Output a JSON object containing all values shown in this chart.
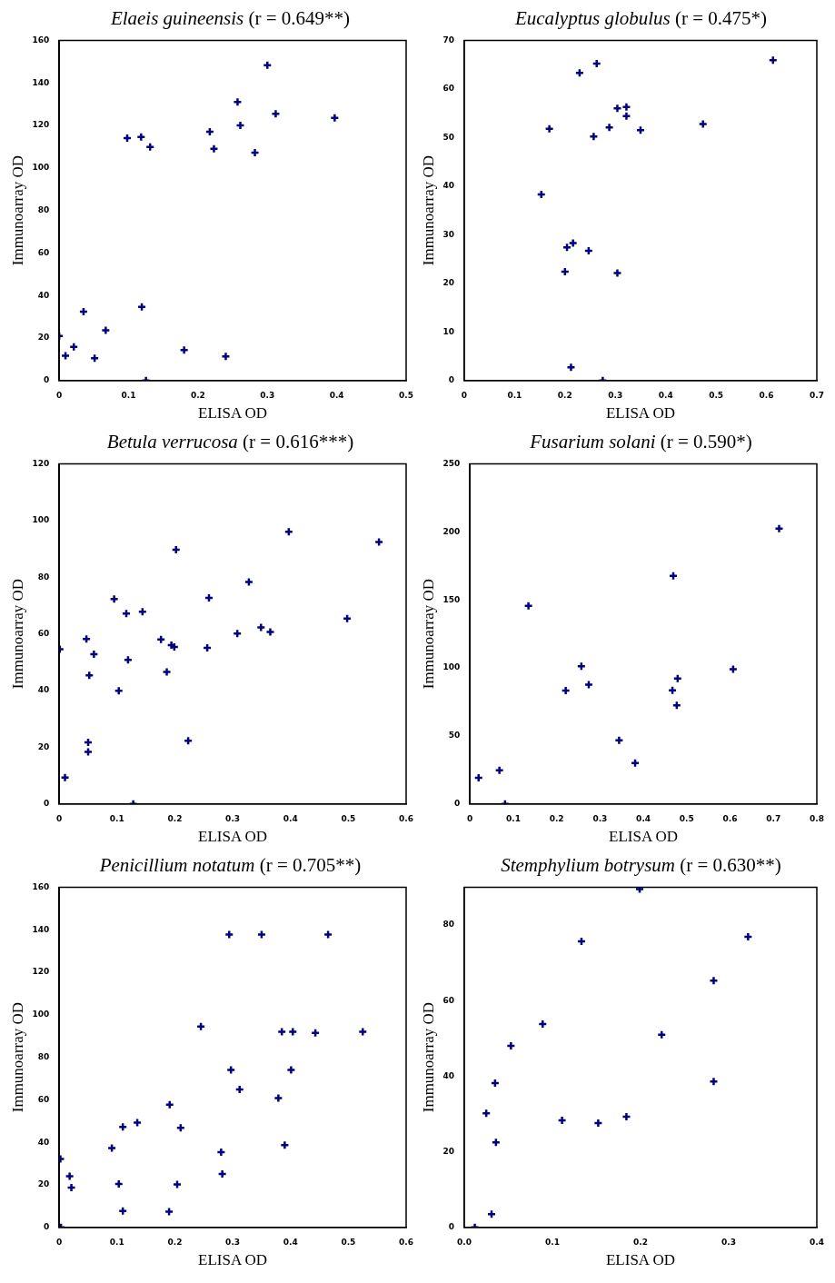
{
  "chart_data": [
    {
      "type": "scatter",
      "title": "Elaeis guineensis (r = 0.649**)",
      "xlabel": "ELISA OD",
      "ylabel": "Immunoarray OD",
      "marker": "cross",
      "xlim": [
        0,
        0.5
      ],
      "xticks": [
        0,
        0.1,
        0.2,
        0.3,
        0.4,
        0.5
      ],
      "ylim": [
        0,
        160
      ],
      "yticks": [
        0,
        20,
        40,
        60,
        80,
        100,
        120,
        140,
        160
      ],
      "series": [
        {
          "color": "#000080",
          "x": [
            0,
            0.009,
            0.021,
            0.035,
            0.051,
            0.067,
            0.098,
            0.118,
            0.119,
            0.125,
            0.131,
            0.18,
            0.217,
            0.223,
            0.24,
            0.257,
            0.261,
            0.282,
            0.3,
            0.312,
            0.397
          ],
          "values": [
            21,
            11.7,
            15.8,
            32.4,
            10.5,
            23.6,
            114,
            114.6,
            34.6,
            0,
            109.8,
            14.3,
            117,
            109,
            11.3,
            131,
            120,
            107.2,
            148.3,
            125.5,
            123.5
          ]
        }
      ]
    },
    {
      "type": "scatter",
      "title": "Eucalyptus globulus (r = 0.475*)",
      "xlabel": "ELISA OD",
      "ylabel": "Immunoarray OD",
      "marker": "cross",
      "xlim": [
        0,
        0.7
      ],
      "xticks": [
        0,
        0.1,
        0.2,
        0.3,
        0.4,
        0.5,
        0.6,
        0.7
      ],
      "ylim": [
        0,
        70
      ],
      "yticks": [
        0,
        10,
        20,
        30,
        40,
        50,
        60,
        70
      ],
      "series": [
        {
          "color": "#000080",
          "x": [
            0.153,
            0.169,
            0.2,
            0.204,
            0.216,
            0.212,
            0.229,
            0.247,
            0.257,
            0.263,
            0.275,
            0.288,
            0.304,
            0.304,
            0.322,
            0.322,
            0.35,
            0.474,
            0.613
          ],
          "values": [
            38.3,
            51.8,
            22.4,
            27.4,
            28.3,
            2.7,
            63.3,
            26.7,
            50.2,
            65.2,
            0,
            52.1,
            22.1,
            56,
            56.3,
            54.4,
            51.5,
            52.8,
            65.9
          ]
        }
      ]
    },
    {
      "type": "scatter",
      "title": "Betula verrucosa (r = 0.616***)",
      "xlabel": "ELISA OD",
      "ylabel": "Immunoarray OD",
      "marker": "cross",
      "xlim": [
        0,
        0.6
      ],
      "xticks": [
        0,
        0.1,
        0.2,
        0.3,
        0.4,
        0.5,
        0.6
      ],
      "ylim": [
        0,
        120
      ],
      "yticks": [
        0,
        20,
        40,
        60,
        80,
        100,
        120
      ],
      "series": [
        {
          "color": "#000080",
          "x": [
            0.001,
            0.01,
            0.047,
            0.05,
            0.05,
            0.052,
            0.06,
            0.095,
            0.103,
            0.116,
            0.119,
            0.128,
            0.144,
            0.176,
            0.186,
            0.194,
            0.199,
            0.202,
            0.223,
            0.256,
            0.259,
            0.308,
            0.328,
            0.349,
            0.365,
            0.397,
            0.498,
            0.553
          ],
          "values": [
            54.6,
            9.3,
            58.2,
            21.7,
            18.4,
            45.4,
            52.8,
            72.3,
            39.9,
            67.2,
            50.8,
            0,
            67.8,
            58,
            46.6,
            56,
            55.4,
            89.7,
            22.3,
            55.1,
            72.7,
            60.1,
            78.3,
            62.3,
            60.7,
            96,
            65.4,
            92.4
          ]
        }
      ]
    },
    {
      "type": "scatter",
      "title": "Fusarium solani (r = 0.590*)",
      "xlabel": "ELISA OD",
      "ylabel": "Immunoarray OD",
      "marker": "cross",
      "xlim": [
        0,
        0.8
      ],
      "xticks": [
        0,
        0.1,
        0.2,
        0.3,
        0.4,
        0.5,
        0.6,
        0.7,
        0.8
      ],
      "ylim": [
        0,
        250
      ],
      "yticks": [
        0,
        50,
        100,
        150,
        200,
        250
      ],
      "series": [
        {
          "color": "#000080",
          "x": [
            0.02,
            0.068,
            0.081,
            0.135,
            0.221,
            0.257,
            0.274,
            0.344,
            0.381,
            0.467,
            0.469,
            0.477,
            0.479,
            0.607,
            0.713
          ],
          "values": [
            19.2,
            24.7,
            0,
            145.6,
            83.3,
            101.2,
            87.6,
            46.8,
            30,
            83.5,
            167.7,
            72.5,
            92.1,
            99.1,
            202.3
          ]
        }
      ]
    },
    {
      "type": "scatter",
      "title": "Penicillium notatum (r = 0.705**)",
      "xlabel": "ELISA OD",
      "ylabel": "Immunoarray OD",
      "marker": "cross",
      "xlim": [
        0,
        0.6
      ],
      "xticks": [
        0,
        0.1,
        0.2,
        0.3,
        0.4,
        0.5,
        0.6
      ],
      "ylim": [
        0,
        160
      ],
      "yticks": [
        0,
        20,
        40,
        60,
        80,
        100,
        120,
        140,
        160
      ],
      "series": [
        {
          "color": "#000080",
          "x": [
            0.002,
            0.003,
            0.018,
            0.021,
            0.091,
            0.103,
            0.11,
            0.11,
            0.135,
            0.19,
            0.191,
            0.204,
            0.21,
            0.245,
            0.28,
            0.282,
            0.294,
            0.297,
            0.312,
            0.35,
            0.379,
            0.385,
            0.39,
            0.401,
            0.404,
            0.443,
            0.465,
            0.525
          ],
          "values": [
            32.2,
            0,
            24.1,
            18.7,
            37.3,
            20.4,
            47.2,
            7.7,
            49.3,
            7.4,
            57.7,
            20.2,
            46.8,
            94.5,
            35.4,
            25.1,
            137.7,
            74.1,
            64.9,
            137.7,
            60.8,
            92,
            38.7,
            74.1,
            92,
            91.5,
            137.7,
            92
          ]
        }
      ]
    },
    {
      "type": "scatter",
      "title": "Stemphylium botrysum (r = 0.630**)",
      "xlabel": "ELISA OD",
      "ylabel": "Immunoarray OD",
      "marker": "cross",
      "xlim": [
        0,
        0.4
      ],
      "xticks": [
        {
          "value": 0,
          "label": "0.0"
        },
        0.1,
        0.2,
        0.3,
        0.4
      ],
      "ylim": [
        0,
        90
      ],
      "yticks": [
        0,
        20,
        40,
        60,
        80
      ],
      "series": [
        {
          "color": "#000080",
          "x": [
            0.012,
            0.025,
            0.031,
            0.035,
            0.036,
            0.053,
            0.089,
            0.111,
            0.133,
            0.152,
            0.184,
            0.199,
            0.224,
            0.283,
            0.283,
            0.322
          ],
          "values": [
            0,
            30.2,
            3.5,
            38.2,
            22.5,
            48,
            53.8,
            28.3,
            75.7,
            27.6,
            29.3,
            89.5,
            51,
            38.6,
            65.3,
            76.9
          ]
        }
      ]
    }
  ]
}
